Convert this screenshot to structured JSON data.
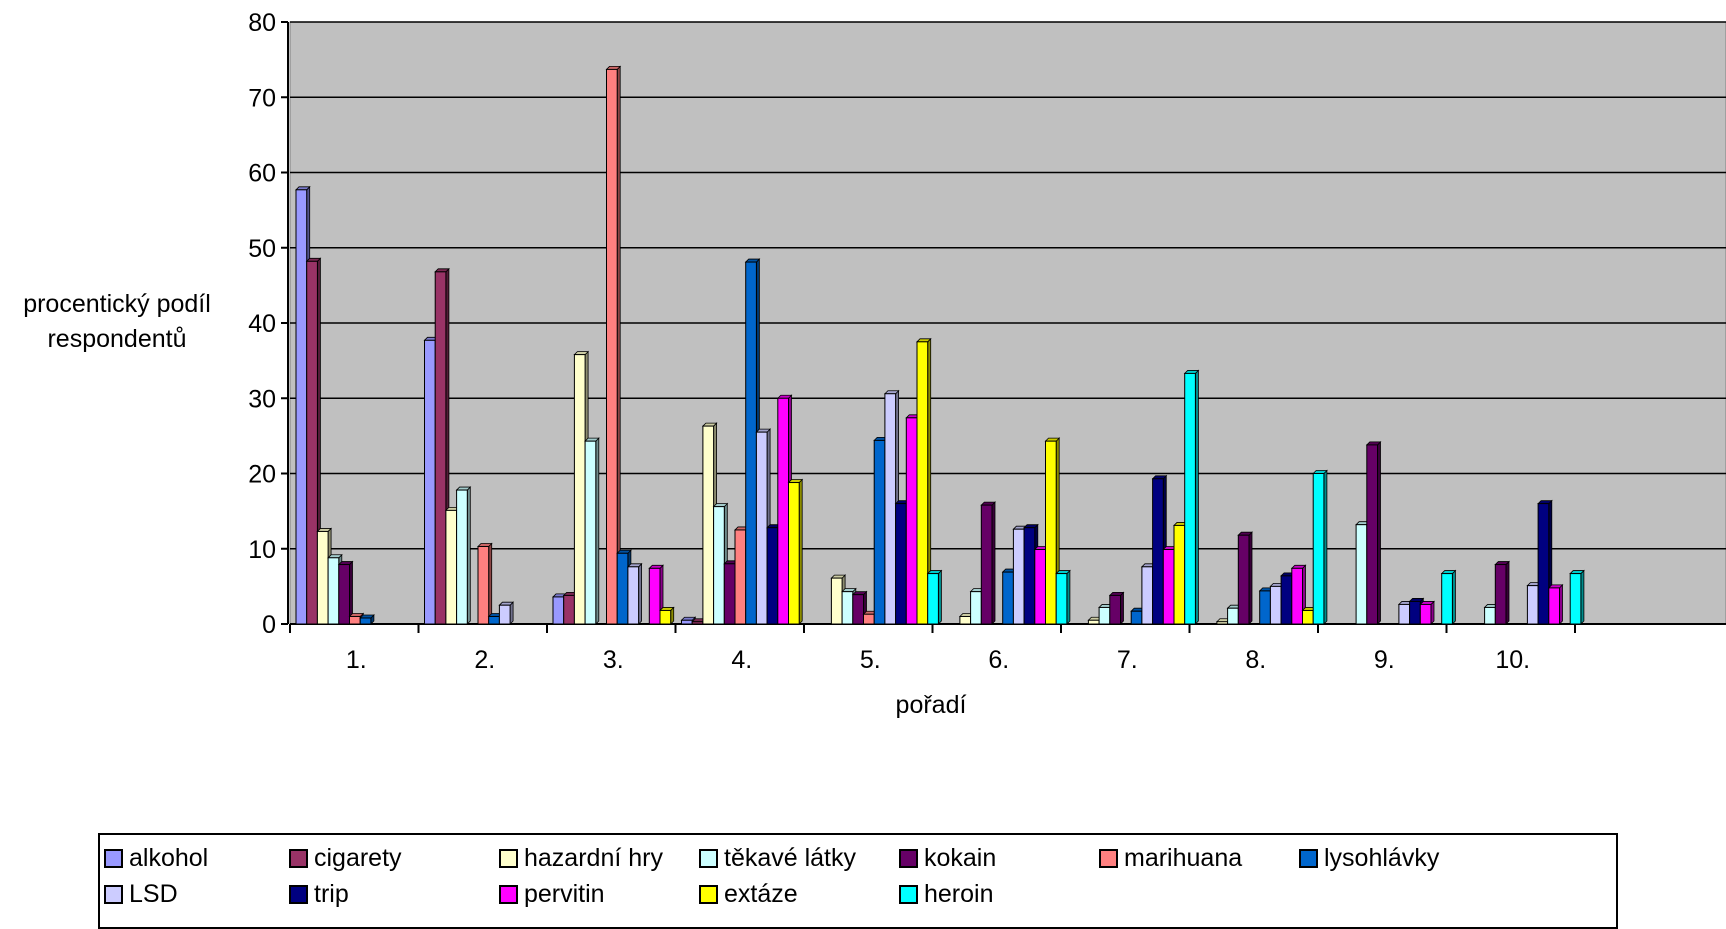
{
  "chart_data": {
    "type": "bar",
    "title": "",
    "xlabel": "pořadí",
    "ylabel_lines": [
      "procentický podíl",
      "respondentů"
    ],
    "ylim": [
      0,
      80
    ],
    "yticks": [
      0,
      10,
      20,
      30,
      40,
      50,
      60,
      70,
      80
    ],
    "grid": true,
    "legend_position": "bottom",
    "categories": [
      "1.",
      "2.",
      "3.",
      "4.",
      "5.",
      "6.",
      "7.",
      "8.",
      "9.",
      "10."
    ],
    "series": [
      {
        "name": "alkohol",
        "color": "#9999ff",
        "values": [
          57.7,
          37.7,
          3.6,
          0.5,
          0,
          0,
          0,
          0,
          0,
          0
        ]
      },
      {
        "name": "cigarety",
        "color": "#993366",
        "values": [
          48.2,
          46.8,
          3.8,
          0.3,
          0,
          0,
          0,
          0,
          0,
          0
        ]
      },
      {
        "name": "hazardní hry",
        "color": "#ffffcc",
        "values": [
          12.3,
          15.1,
          35.8,
          26.3,
          6.1,
          1.0,
          0.5,
          0.3,
          0,
          0
        ]
      },
      {
        "name": "těkavé látky",
        "color": "#ccffff",
        "values": [
          8.8,
          17.8,
          24.3,
          15.6,
          4.3,
          4.3,
          2.2,
          2.1,
          13.2,
          2.2
        ]
      },
      {
        "name": "kokain",
        "color": "#660066",
        "values": [
          7.9,
          0,
          0,
          8.0,
          3.9,
          15.8,
          3.8,
          11.8,
          23.8,
          7.9
        ]
      },
      {
        "name": "marihuana",
        "color": "#ff8080",
        "values": [
          1.0,
          10.3,
          73.7,
          12.5,
          1.3,
          0,
          0,
          0,
          0,
          0
        ]
      },
      {
        "name": "lysohlávky",
        "color": "#0066cc",
        "values": [
          0.8,
          1.0,
          9.4,
          48.1,
          24.4,
          6.9,
          1.7,
          4.4,
          0,
          0
        ]
      },
      {
        "name": "LSD",
        "color": "#ccccff",
        "values": [
          0,
          2.5,
          7.6,
          25.5,
          30.6,
          12.6,
          7.6,
          5.0,
          2.6,
          5.1
        ]
      },
      {
        "name": "trip",
        "color": "#000080",
        "values": [
          0,
          0,
          0,
          12.8,
          16.0,
          12.8,
          19.3,
          6.4,
          3.0,
          16.0
        ]
      },
      {
        "name": "pervitin",
        "color": "#ff00ff",
        "values": [
          0,
          0,
          7.4,
          30.0,
          27.4,
          9.9,
          9.9,
          7.4,
          2.6,
          4.8
        ]
      },
      {
        "name": "extáze",
        "color": "#ffff00",
        "values": [
          0,
          0,
          1.8,
          18.8,
          37.5,
          24.3,
          13.1,
          1.8,
          0,
          0
        ]
      },
      {
        "name": "heroin",
        "color": "#00ffff",
        "values": [
          0,
          0,
          0,
          0,
          6.7,
          6.7,
          33.3,
          20.0,
          6.7,
          6.7
        ]
      }
    ]
  }
}
